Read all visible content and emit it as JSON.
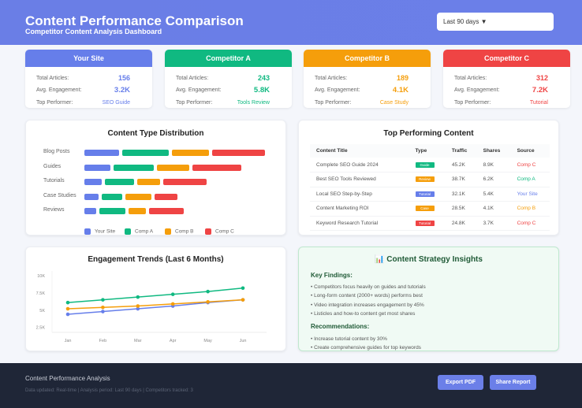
{
  "header": {
    "title": "Content Performance Comparison",
    "subtitle": "Competitor Content Analysis Dashboard",
    "period": "Last 90 days ▼"
  },
  "labels": {
    "articles": "Total Articles:",
    "engagement": "Avg. Engagement:",
    "top": "Top Performer:"
  },
  "cards": [
    {
      "name": "Your Site",
      "articles": "156",
      "engagement": "3.2K",
      "top": "SEO Guide",
      "color": "#667eea"
    },
    {
      "name": "Competitor A",
      "articles": "243",
      "engagement": "5.8K",
      "top": "Tools Review",
      "color": "#10b981"
    },
    {
      "name": "Competitor B",
      "articles": "189",
      "engagement": "4.1K",
      "top": "Case Study",
      "color": "#f59e0b"
    },
    {
      "name": "Competitor C",
      "articles": "312",
      "engagement": "7.2K",
      "top": "Tutorial",
      "color": "#ef4444"
    }
  ],
  "chart_data": [
    {
      "type": "bar",
      "title": "Content Type Distribution",
      "categories": [
        "Blog Posts",
        "Guides",
        "Tutorials",
        "Case Studies",
        "Reviews"
      ],
      "series": [
        {
          "name": "Your Site",
          "values": [
            12,
            9,
            6,
            5,
            4
          ],
          "color": "#667eea"
        },
        {
          "name": "Comp A",
          "values": [
            16,
            14,
            10,
            7,
            9
          ],
          "color": "#10b981"
        },
        {
          "name": "Comp B",
          "values": [
            13,
            11,
            8,
            9,
            6
          ],
          "color": "#f59e0b"
        },
        {
          "name": "Comp C",
          "values": [
            18,
            17,
            15,
            8,
            12
          ],
          "color": "#ef4444"
        }
      ],
      "legend": "bottom"
    },
    {
      "type": "line",
      "title": "Engagement Trends (Last 6 Months)",
      "x": [
        "Jan",
        "Feb",
        "Mar",
        "Apr",
        "May",
        "Jun"
      ],
      "yticks": [
        "2.5K",
        "5K",
        "7.5K",
        "10K"
      ],
      "ylim": [
        2500,
        10000
      ],
      "series": [
        {
          "values": [
            4400,
            4800,
            5200,
            5600,
            6100,
            6500
          ],
          "color": "#667eea"
        },
        {
          "values": [
            6100,
            6500,
            6900,
            7300,
            7700,
            8200
          ],
          "color": "#10b981"
        },
        {
          "values": [
            5200,
            5400,
            5600,
            5900,
            6200,
            6500
          ],
          "color": "#f59e0b"
        }
      ]
    }
  ],
  "top_content": {
    "title": "Top Performing Content",
    "columns": [
      "Content Title",
      "Type",
      "Traffic",
      "Shares",
      "Source"
    ],
    "rows": [
      {
        "title": "Complete SEO Guide 2024",
        "type": "Guide",
        "type_color": "#10b981",
        "traffic": "45.2K",
        "shares": "8.9K",
        "source": "Comp C",
        "source_color": "#ef4444"
      },
      {
        "title": "Best SEO Tools Reviewed",
        "type": "Review",
        "type_color": "#f59e0b",
        "traffic": "38.7K",
        "shares": "6.2K",
        "source": "Comp A",
        "source_color": "#10b981"
      },
      {
        "title": "Local SEO Step-by-Step",
        "type": "Tutorial",
        "type_color": "#667eea",
        "traffic": "32.1K",
        "shares": "5.4K",
        "source": "Your Site",
        "source_color": "#667eea"
      },
      {
        "title": "Content Marketing ROI",
        "type": "Case",
        "type_color": "#f59e0b",
        "traffic": "28.5K",
        "shares": "4.1K",
        "source": "Comp B",
        "source_color": "#f59e0b"
      },
      {
        "title": "Keyword Research Tutorial",
        "type": "Tutorial",
        "type_color": "#ef4444",
        "traffic": "24.8K",
        "shares": "3.7K",
        "source": "Comp C",
        "source_color": "#ef4444"
      }
    ]
  },
  "insights": {
    "icon": "📊",
    "title": "Content Strategy Insights",
    "findings_title": "Key Findings:",
    "findings": [
      "• Competitors focus heavily on guides and tutorials",
      "• Long-form content (2000+ words) performs best",
      "• Video integration increases engagement by 45%",
      "• Listicles and how-to content get most shares"
    ],
    "recs_title": "Recommendations:",
    "recs": [
      "• Increase tutorial content by 30%",
      "• Create comprehensive guides for top keywords"
    ]
  },
  "footer": {
    "title": "Content Performance Analysis",
    "meta": "Data updated: Real-time | Analysis period: Last 90 days | Competitors tracked: 3",
    "export": "Export PDF",
    "share": "Share Report"
  }
}
